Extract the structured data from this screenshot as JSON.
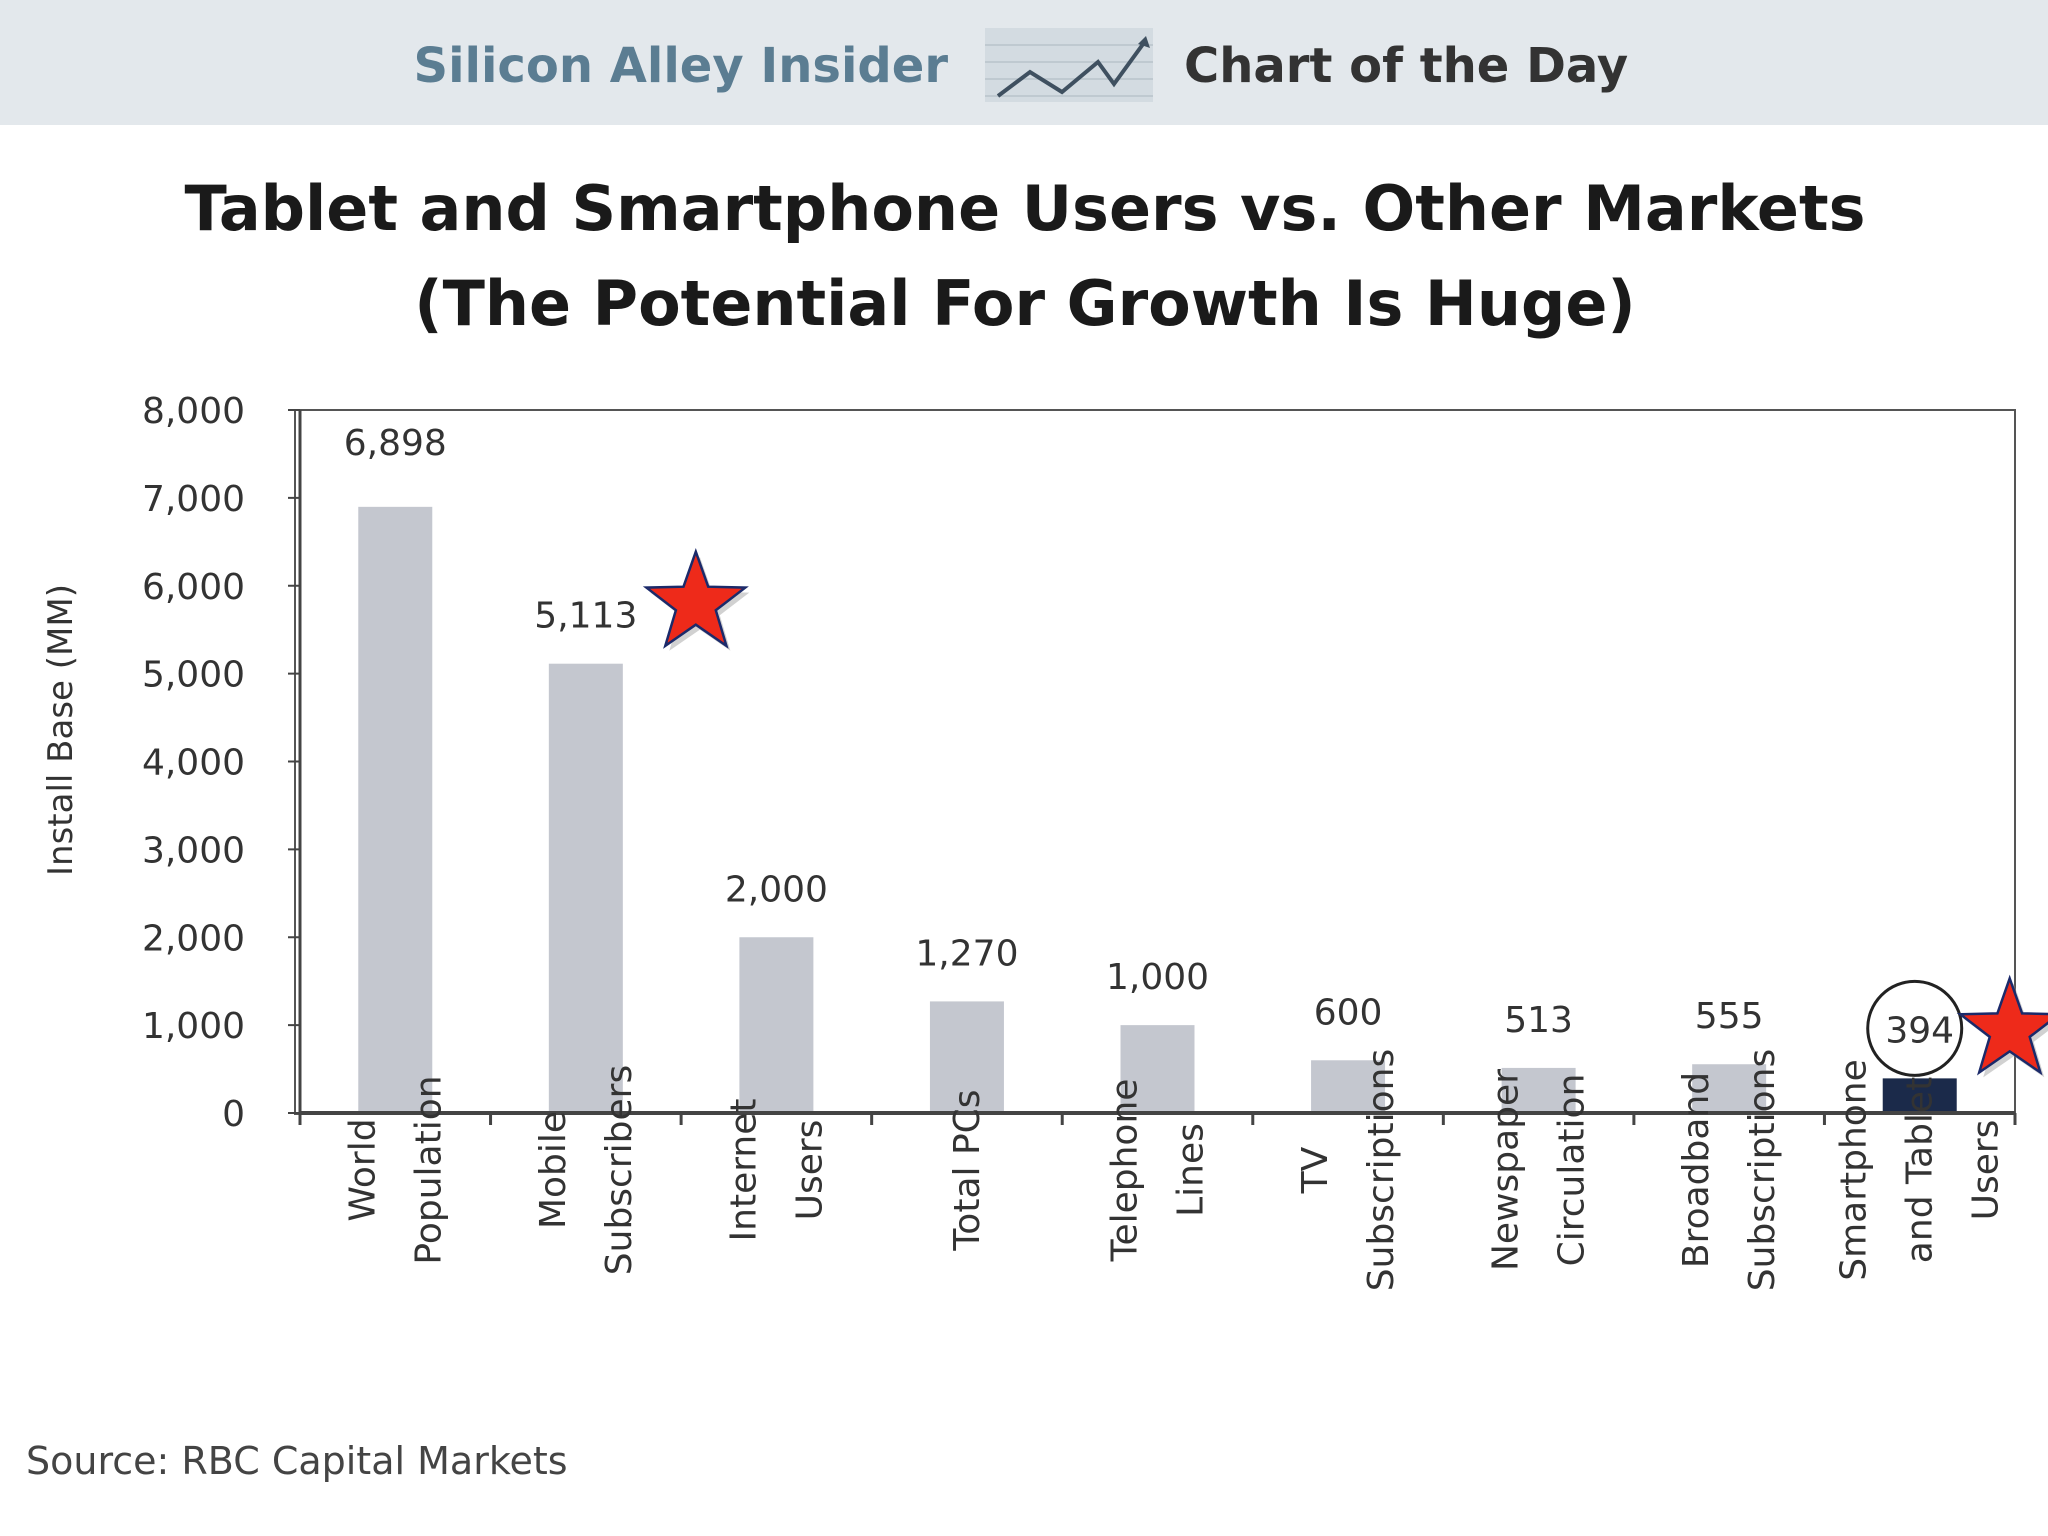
{
  "banner": {
    "brand": "Silicon Alley Insider",
    "subtitle": "Chart of the Day",
    "logo_icon": "trend-line-icon"
  },
  "chart_data": {
    "type": "bar",
    "title": "Tablet and Smartphone Users vs. Other Markets",
    "subtitle": "(The Potential For Growth Is Huge)",
    "xlabel": "",
    "ylabel": "Install Base (MM)",
    "ylim": [
      0,
      8000
    ],
    "yticks": [
      0,
      1000,
      2000,
      3000,
      4000,
      5000,
      6000,
      7000,
      8000
    ],
    "ytick_labels": [
      "0",
      "1,000",
      "2,000",
      "3,000",
      "4,000",
      "5,000",
      "6,000",
      "7,000",
      "8,000"
    ],
    "grid": false,
    "categories": [
      [
        "World",
        "Population"
      ],
      [
        "Mobile",
        "Subscribers"
      ],
      [
        "Internet",
        "Users"
      ],
      [
        "Total PCs"
      ],
      [
        "Telephone",
        "Lines"
      ],
      [
        "TV",
        "Subscriptions"
      ],
      [
        "Newspaper",
        "Circulation"
      ],
      [
        "Broadband",
        "Subscriptions"
      ],
      [
        "Smartphone",
        "and Tablet",
        "Users"
      ]
    ],
    "values": [
      6898,
      5113,
      2000,
      1270,
      1000,
      600,
      513,
      555,
      394
    ],
    "value_labels": [
      "6,898",
      "5,113",
      "2,000",
      "1,270",
      "1,000",
      "600",
      "513",
      "555",
      "394"
    ],
    "highlight_index": 8,
    "starred_indices": [
      1,
      8
    ],
    "circled_index": 8,
    "colors": {
      "bar": "#c4c7cf",
      "highlight": "#1b2a4a",
      "star_fill": "#ee2a1a",
      "star_stroke": "#1b2a6a",
      "axis": "#444444",
      "banner_bg": "#e3e8ec"
    }
  },
  "source": "Source: RBC Capital Markets"
}
